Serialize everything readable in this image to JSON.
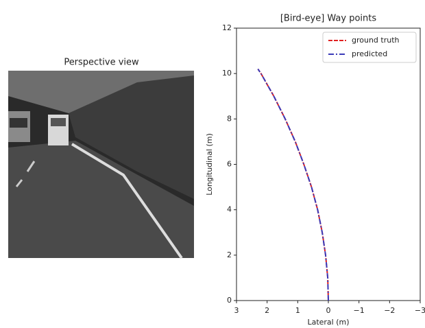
{
  "perspective_view": {
    "title": "Perspective view"
  },
  "chart_data": {
    "type": "line",
    "title": "[Bird-eye] Way points",
    "xlabel": "Lateral (m)",
    "ylabel": "Longitudinal (m)",
    "x": [
      0,
      0.02,
      0.09,
      0.2,
      0.35,
      0.55,
      0.8,
      1.08,
      1.41,
      1.78,
      2.2,
      2.3
    ],
    "series": [
      {
        "name": "ground truth",
        "color": "#e02020",
        "values": [
          0,
          1,
          2,
          3,
          4,
          5,
          6,
          7,
          8,
          9,
          10,
          10.2
        ]
      },
      {
        "name": "predicted",
        "color": "#3a3ab8",
        "values": [
          0,
          1,
          2,
          3,
          4,
          5,
          6,
          7,
          8,
          9,
          10,
          10.2
        ]
      }
    ],
    "xlim": [
      3,
      -3
    ],
    "xticks": [
      3,
      2,
      1,
      0,
      {
        "value": -1,
        "label": "−1"
      },
      {
        "value": -2,
        "label": "−2"
      },
      {
        "value": -3,
        "label": "−3"
      }
    ],
    "ylim": [
      0,
      12
    ],
    "yticks": [
      0,
      2,
      4,
      6,
      8,
      10,
      12
    ],
    "legend": "upper right"
  }
}
